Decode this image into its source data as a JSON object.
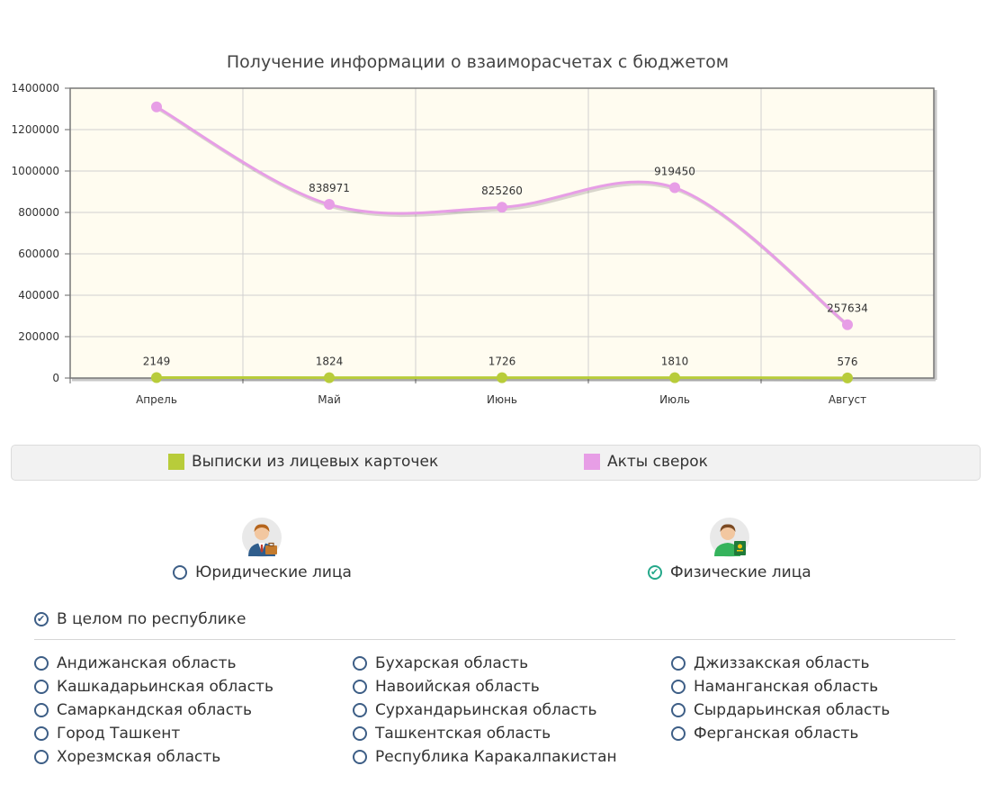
{
  "chart_data": {
    "type": "line",
    "title": "Получение информации о взаиморасчетах с бюджетом",
    "categories": [
      "Апрель",
      "Май",
      "Июнь",
      "Июль",
      "Август"
    ],
    "series": [
      {
        "name": "Выписки из лицевых карточек",
        "values": [
          2149,
          1824,
          1726,
          1810,
          576
        ],
        "color": "#b8cc3a",
        "labels": [
          "2149",
          "1824",
          "1726",
          "1810",
          "576"
        ]
      },
      {
        "name": "Акты сверок",
        "values": [
          1310000,
          838971,
          825260,
          919450,
          257634
        ],
        "color": "#e79ee6",
        "labels": [
          "",
          "838971",
          "825260",
          "919450",
          "257634"
        ]
      }
    ],
    "yticks": [
      "0",
      "200000",
      "400000",
      "600000",
      "800000",
      "1000000",
      "1200000",
      "1400000"
    ],
    "ylim": [
      0,
      1400000
    ],
    "grid": true,
    "plot_background": "#fffcf0",
    "legend_position": "bottom"
  },
  "legend": {
    "items": [
      {
        "label": "Выписки из лицевых карточек",
        "color": "#b8cc3a"
      },
      {
        "label": "Акты сверок",
        "color": "#e79ee6"
      }
    ]
  },
  "person_types": {
    "legal": {
      "label": "Юридические лица",
      "checked": false,
      "icon": "businessman-icon"
    },
    "individual": {
      "label": "Физические лица",
      "checked": true,
      "icon": "person-with-passport-icon"
    }
  },
  "regions": {
    "all_label": "В целом по республике",
    "all_checked": true,
    "items": [
      "Андижанская область",
      "Бухарская область",
      "Джиззакская область",
      "Кашкадарьинская область",
      "Навоийская область",
      "Наманганская область",
      "Самаркандская область",
      "Сурхандарьинская область",
      "Сырдарьинская область",
      "Город Ташкент",
      "Ташкентская область",
      "Ферганская область",
      "Хорезмская область",
      "Республика Каракалпакистан"
    ]
  },
  "colors": {
    "radio_border": "#3d5e86",
    "radio_checked_green": "#25a88a"
  }
}
